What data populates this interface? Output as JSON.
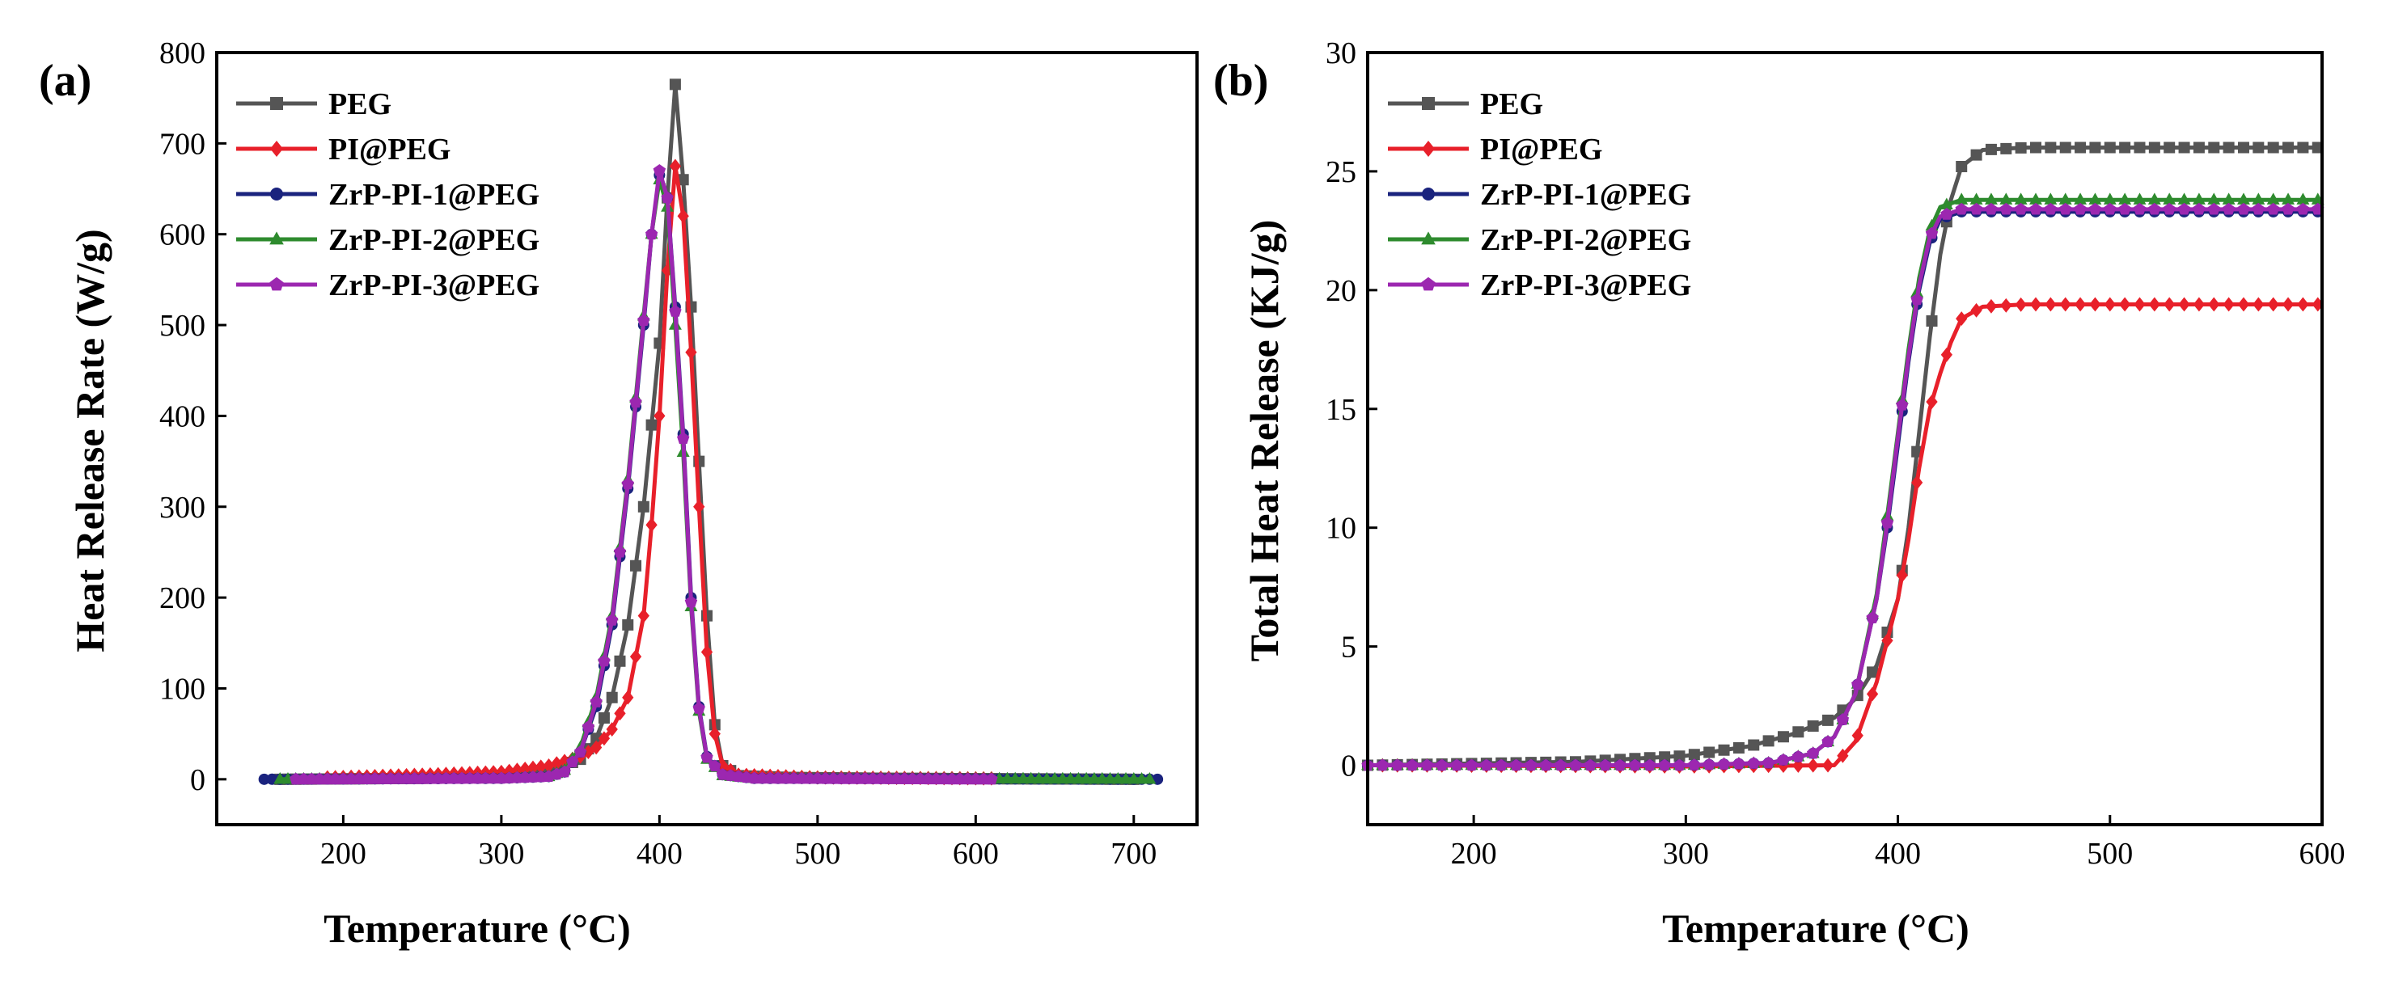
{
  "figure": {
    "panels": [
      "(a)",
      "(b)"
    ]
  },
  "chart_data": [
    {
      "panel_label": "(a)",
      "type": "line",
      "title": "",
      "xlabel": "Temperature (°C)",
      "ylabel": "Heat Release Rate (W/g)",
      "xlim": [
        120,
        740
      ],
      "ylim": [
        -50,
        800
      ],
      "xticks": [
        200,
        300,
        400,
        500,
        600,
        700
      ],
      "yticks": [
        0,
        100,
        200,
        300,
        400,
        500,
        600,
        700,
        800
      ],
      "grid": false,
      "legend_position": "top-left",
      "series": [
        {
          "name": "PEG",
          "color": "#555555",
          "marker": "square",
          "points": [
            [
              160,
              0
            ],
            [
              250,
              1
            ],
            [
              300,
              3
            ],
            [
              330,
              8
            ],
            [
              350,
              22
            ],
            [
              360,
              45
            ],
            [
              370,
              90
            ],
            [
              380,
              170
            ],
            [
              390,
              300
            ],
            [
              400,
              480
            ],
            [
              405,
              640
            ],
            [
              410,
              765
            ],
            [
              415,
              660
            ],
            [
              420,
              520
            ],
            [
              425,
              350
            ],
            [
              430,
              180
            ],
            [
              435,
              60
            ],
            [
              440,
              15
            ],
            [
              450,
              4
            ],
            [
              480,
              2
            ],
            [
              550,
              1
            ],
            [
              700,
              0
            ]
          ]
        },
        {
          "name": "PI@PEG",
          "color": "#e8202a",
          "marker": "diamond",
          "points": [
            [
              190,
              2
            ],
            [
              250,
              5
            ],
            [
              300,
              8
            ],
            [
              330,
              15
            ],
            [
              350,
              25
            ],
            [
              360,
              35
            ],
            [
              370,
              55
            ],
            [
              380,
              90
            ],
            [
              390,
              180
            ],
            [
              395,
              280
            ],
            [
              400,
              400
            ],
            [
              405,
              560
            ],
            [
              410,
              675
            ],
            [
              415,
              620
            ],
            [
              420,
              470
            ],
            [
              425,
              300
            ],
            [
              430,
              140
            ],
            [
              435,
              50
            ],
            [
              440,
              15
            ],
            [
              450,
              5
            ],
            [
              500,
              2
            ],
            [
              610,
              1
            ]
          ]
        },
        {
          "name": "ZrP-PI-1@PEG",
          "color": "#1a237e",
          "marker": "circle",
          "points": [
            [
              150,
              0
            ],
            [
              300,
              1
            ],
            [
              330,
              3
            ],
            [
              340,
              8
            ],
            [
              350,
              30
            ],
            [
              360,
              80
            ],
            [
              370,
              170
            ],
            [
              380,
              320
            ],
            [
              390,
              500
            ],
            [
              395,
              600
            ],
            [
              400,
              665
            ],
            [
              405,
              640
            ],
            [
              410,
              520
            ],
            [
              415,
              380
            ],
            [
              420,
              200
            ],
            [
              425,
              80
            ],
            [
              430,
              25
            ],
            [
              440,
              5
            ],
            [
              460,
              1
            ],
            [
              715,
              0
            ]
          ]
        },
        {
          "name": "ZrP-PI-2@PEG",
          "color": "#2e8b2e",
          "marker": "triangle",
          "points": [
            [
              160,
              0
            ],
            [
              300,
              1
            ],
            [
              330,
              3
            ],
            [
              340,
              10
            ],
            [
              350,
              35
            ],
            [
              360,
              90
            ],
            [
              370,
              180
            ],
            [
              380,
              330
            ],
            [
              390,
              510
            ],
            [
              395,
              600
            ],
            [
              400,
              660
            ],
            [
              405,
              630
            ],
            [
              410,
              500
            ],
            [
              415,
              360
            ],
            [
              420,
              190
            ],
            [
              425,
              75
            ],
            [
              430,
              22
            ],
            [
              440,
              4
            ],
            [
              460,
              1
            ],
            [
              710,
              0
            ]
          ]
        },
        {
          "name": "ZrP-PI-3@PEG",
          "color": "#9c27b0",
          "marker": "pentagon",
          "points": [
            [
              170,
              0
            ],
            [
              300,
              1
            ],
            [
              330,
              3
            ],
            [
              340,
              8
            ],
            [
              350,
              30
            ],
            [
              360,
              85
            ],
            [
              370,
              175
            ],
            [
              380,
              325
            ],
            [
              390,
              505
            ],
            [
              395,
              600
            ],
            [
              400,
              670
            ],
            [
              405,
              640
            ],
            [
              410,
              515
            ],
            [
              415,
              375
            ],
            [
              420,
              195
            ],
            [
              425,
              78
            ],
            [
              430,
              24
            ],
            [
              440,
              5
            ],
            [
              460,
              1
            ],
            [
              610,
              0
            ]
          ]
        }
      ]
    },
    {
      "panel_label": "(b)",
      "type": "line",
      "title": "",
      "xlabel": "Temperature (°C)",
      "ylabel": "Total Heat Release (KJ/g)",
      "xlim": [
        150,
        600
      ],
      "ylim": [
        -2.5,
        30
      ],
      "xticks": [
        200,
        300,
        400,
        500,
        600
      ],
      "yticks": [
        0,
        5,
        10,
        15,
        20,
        25,
        30
      ],
      "grid": false,
      "legend_position": "top-left",
      "series": [
        {
          "name": "PEG",
          "color": "#555555",
          "marker": "square",
          "points": [
            [
              150,
              0
            ],
            [
              250,
              0.15
            ],
            [
              300,
              0.4
            ],
            [
              330,
              0.8
            ],
            [
              350,
              1.3
            ],
            [
              370,
              2.0
            ],
            [
              380,
              2.8
            ],
            [
              390,
              4.2
            ],
            [
              400,
              7.0
            ],
            [
              405,
              10
            ],
            [
              410,
              14
            ],
            [
              415,
              18
            ],
            [
              420,
              21.5
            ],
            [
              425,
              23.8
            ],
            [
              430,
              25.2
            ],
            [
              440,
              25.9
            ],
            [
              460,
              26
            ],
            [
              600,
              26
            ]
          ]
        },
        {
          "name": "PI@PEG",
          "color": "#e8202a",
          "marker": "diamond",
          "points": [
            [
              150,
              0
            ],
            [
              300,
              -0.05
            ],
            [
              370,
              0
            ],
            [
              380,
              1.0
            ],
            [
              390,
              3.5
            ],
            [
              400,
              7.0
            ],
            [
              405,
              9.5
            ],
            [
              410,
              12.5
            ],
            [
              415,
              15
            ],
            [
              420,
              16.5
            ],
            [
              425,
              17.8
            ],
            [
              430,
              18.8
            ],
            [
              440,
              19.3
            ],
            [
              460,
              19.4
            ],
            [
              600,
              19.4
            ]
          ]
        },
        {
          "name": "ZrP-PI-1@PEG",
          "color": "#1a237e",
          "marker": "circle",
          "points": [
            [
              150,
              0
            ],
            [
              300,
              0
            ],
            [
              340,
              0.1
            ],
            [
              360,
              0.5
            ],
            [
              370,
              1.2
            ],
            [
              380,
              3.0
            ],
            [
              390,
              7.0
            ],
            [
              395,
              10
            ],
            [
              400,
              13.5
            ],
            [
              405,
              17
            ],
            [
              410,
              20
            ],
            [
              415,
              22
            ],
            [
              420,
              23
            ],
            [
              430,
              23.3
            ],
            [
              600,
              23.3
            ]
          ]
        },
        {
          "name": "ZrP-PI-2@PEG",
          "color": "#2e8b2e",
          "marker": "triangle",
          "points": [
            [
              150,
              0
            ],
            [
              300,
              0
            ],
            [
              340,
              0.1
            ],
            [
              360,
              0.5
            ],
            [
              370,
              1.2
            ],
            [
              380,
              3.0
            ],
            [
              390,
              7.2
            ],
            [
              395,
              10.5
            ],
            [
              400,
              14
            ],
            [
              405,
              17.5
            ],
            [
              410,
              20.5
            ],
            [
              415,
              22.5
            ],
            [
              420,
              23.5
            ],
            [
              430,
              23.8
            ],
            [
              600,
              23.8
            ]
          ]
        },
        {
          "name": "ZrP-PI-3@PEG",
          "color": "#9c27b0",
          "marker": "pentagon",
          "points": [
            [
              150,
              0
            ],
            [
              300,
              0
            ],
            [
              340,
              0.1
            ],
            [
              360,
              0.5
            ],
            [
              370,
              1.2
            ],
            [
              380,
              3.0
            ],
            [
              390,
              7.0
            ],
            [
              395,
              10.2
            ],
            [
              400,
              13.8
            ],
            [
              405,
              17.2
            ],
            [
              410,
              20.2
            ],
            [
              415,
              22.2
            ],
            [
              420,
              23.1
            ],
            [
              430,
              23.4
            ],
            [
              600,
              23.4
            ]
          ]
        }
      ]
    }
  ]
}
